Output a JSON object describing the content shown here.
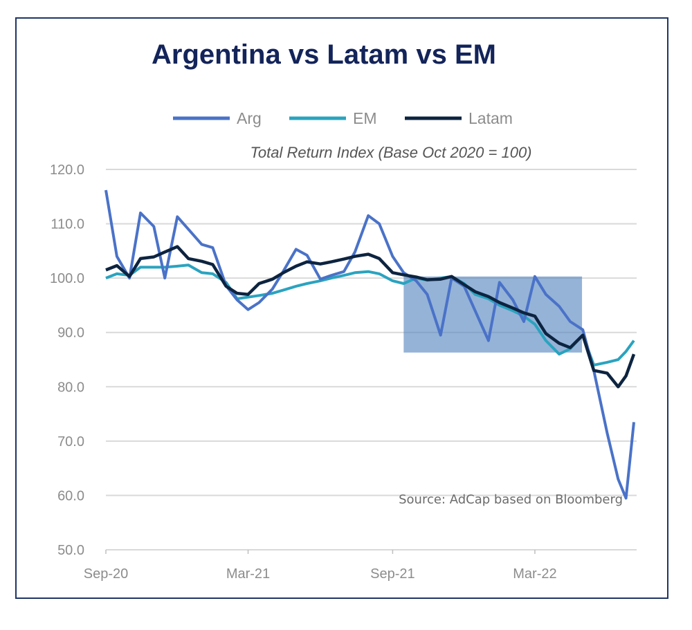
{
  "chart_data": {
    "type": "line",
    "title": "Argentina vs Latam vs EM",
    "subtitle": "Total Return Index (Base Oct 2020 = 100)",
    "source": "Source: AdCap based on Bloomberg",
    "ylim": [
      50,
      120
    ],
    "yticks": [
      "50.0",
      "60.0",
      "70.0",
      "80.0",
      "90.0",
      "100.0",
      "110.0",
      "120.0"
    ],
    "xlim": [
      "2020-09-01",
      "2022-07-05"
    ],
    "xticks": [
      {
        "date": "2020-09-01",
        "label": "Sep-20"
      },
      {
        "date": "2021-03-01",
        "label": "Mar-21"
      },
      {
        "date": "2021-09-01",
        "label": "Sep-21"
      },
      {
        "date": "2022-03-01",
        "label": "Mar-22"
      }
    ],
    "grid": "horizontal",
    "legend": "top-center",
    "x": [
      "2020-09-01",
      "2020-09-15",
      "2020-10-01",
      "2020-10-15",
      "2020-11-01",
      "2020-11-15",
      "2020-12-01",
      "2020-12-15",
      "2021-01-01",
      "2021-01-15",
      "2021-02-01",
      "2021-02-15",
      "2021-03-01",
      "2021-03-15",
      "2021-04-01",
      "2021-04-15",
      "2021-05-01",
      "2021-05-15",
      "2021-06-01",
      "2021-06-15",
      "2021-07-01",
      "2021-07-15",
      "2021-08-01",
      "2021-08-15",
      "2021-09-01",
      "2021-09-15",
      "2021-10-01",
      "2021-10-15",
      "2021-11-01",
      "2021-11-15",
      "2021-12-01",
      "2021-12-15",
      "2022-01-01",
      "2022-01-15",
      "2022-02-01",
      "2022-02-15",
      "2022-03-01",
      "2022-03-15",
      "2022-04-01",
      "2022-04-15",
      "2022-05-01",
      "2022-05-15",
      "2022-06-01",
      "2022-06-15",
      "2022-06-25",
      "2022-07-05"
    ],
    "series": [
      {
        "name": "Arg",
        "color": "#4a72c8",
        "values": [
          116.2,
          104,
          100,
          112,
          109.5,
          100,
          111.3,
          109,
          106.2,
          105.6,
          98.6,
          96,
          94.2,
          95.5,
          98,
          101.3,
          105.3,
          104.2,
          99.8,
          100.5,
          101.2,
          104.8,
          111.5,
          110,
          104,
          101,
          99.5,
          97,
          89.5,
          100,
          98.5,
          94,
          88.5,
          99.2,
          96,
          92,
          100.3,
          97,
          94.8,
          92,
          90.5,
          83,
          71.5,
          63,
          59.5,
          73.5
        ]
      },
      {
        "name": "EM",
        "color": "#2aa3bf",
        "values": [
          100,
          100.8,
          100.5,
          102,
          102,
          102,
          102.2,
          102.4,
          101,
          100.8,
          99.2,
          96.2,
          96.5,
          96.8,
          97.2,
          97.8,
          98.5,
          99,
          99.5,
          100,
          100.5,
          101,
          101.2,
          100.8,
          99.5,
          99,
          100,
          99.6,
          100,
          100.3,
          99,
          97,
          96.2,
          95,
          94,
          93,
          91.5,
          88.5,
          86,
          87,
          89.5,
          84,
          84.5,
          85,
          86.5,
          88.5
        ]
      },
      {
        "name": "Latam",
        "color": "#0d2440",
        "values": [
          101.5,
          102.3,
          100.3,
          103.6,
          103.9,
          104.8,
          105.8,
          103.6,
          103.1,
          102.5,
          98.5,
          97.2,
          97,
          99,
          99.8,
          101,
          102.2,
          103,
          102.6,
          103,
          103.5,
          104,
          104.4,
          103.6,
          101,
          100.6,
          100.2,
          99.7,
          99.8,
          100.3,
          98.8,
          97.5,
          96.6,
          95.5,
          94.5,
          93.6,
          93,
          89.8,
          88,
          87.2,
          89.5,
          83,
          82.5,
          80,
          82,
          86
        ]
      }
    ],
    "annotations": [
      {
        "type": "shaded-rectangle",
        "x": [
          "2021-09-15",
          "2022-04-30"
        ],
        "y": [
          86.3,
          100.3
        ],
        "color": "#4f81bd"
      }
    ]
  }
}
